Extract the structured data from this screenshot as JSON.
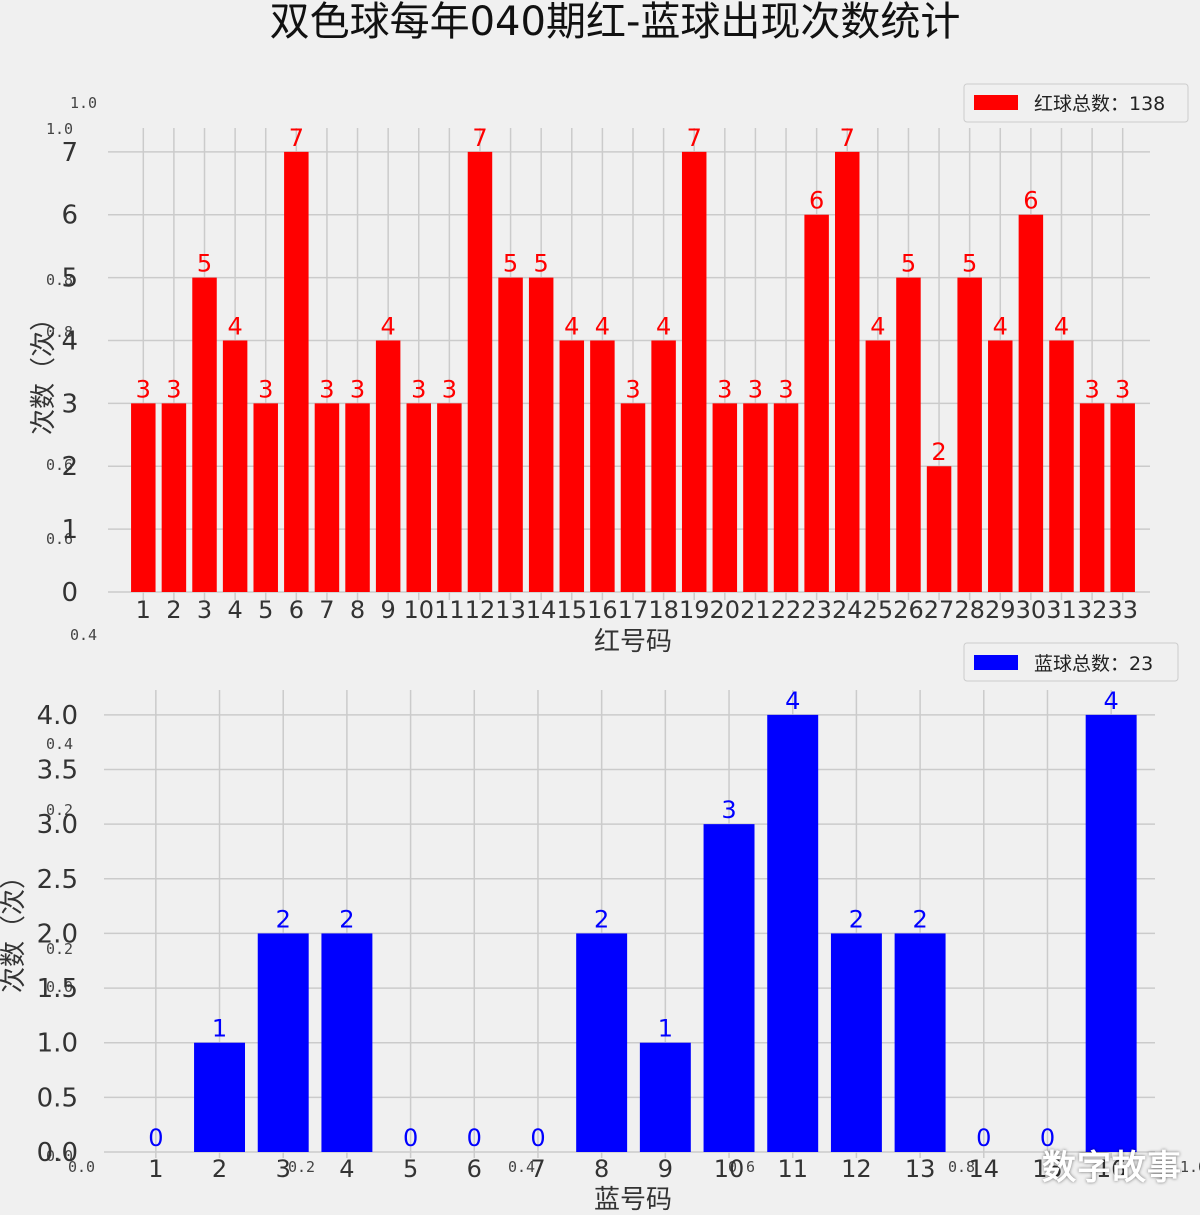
{
  "title": "双色球每年040期红-蓝球出现次数统计",
  "watermark": "数字故事",
  "colors": {
    "background": "#f0f0f0",
    "grid": "#cbcbcb",
    "red": "#ff0000",
    "blue": "#0000ff",
    "text": "#333333"
  },
  "ghost_axis": {
    "left_ticks": [
      "1.0",
      "1.0",
      "0.8",
      "0.8",
      "0.6",
      "0.6",
      "0.4",
      "0.4",
      "0.2",
      "0.2",
      "0.0",
      "0.0"
    ],
    "bottom_ticks": [
      "0.0",
      "0.2",
      "0.4",
      "0.6",
      "0.8",
      "1.0"
    ]
  },
  "chart_data": [
    {
      "type": "bar",
      "title": "",
      "xlabel": "红号码",
      "ylabel": "次数（次）",
      "legend": "红球总数：138",
      "legend_position": "top-right",
      "color": "#ff0000",
      "ylim": [
        0,
        7.3
      ],
      "yticks": [
        "0",
        "1",
        "2",
        "3",
        "4",
        "5",
        "6",
        "7"
      ],
      "grid": true,
      "categories": [
        "1",
        "2",
        "3",
        "4",
        "5",
        "6",
        "7",
        "8",
        "9",
        "10",
        "11",
        "12",
        "13",
        "14",
        "15",
        "16",
        "17",
        "18",
        "19",
        "20",
        "21",
        "22",
        "23",
        "24",
        "25",
        "26",
        "27",
        "28",
        "29",
        "30",
        "31",
        "32",
        "33"
      ],
      "values": [
        3,
        3,
        5,
        4,
        3,
        7,
        3,
        3,
        4,
        3,
        3,
        7,
        5,
        5,
        4,
        4,
        3,
        4,
        7,
        3,
        3,
        3,
        6,
        7,
        4,
        5,
        2,
        5,
        4,
        6,
        4,
        3,
        3
      ]
    },
    {
      "type": "bar",
      "title": "",
      "xlabel": "蓝号码",
      "ylabel": "次数（次）",
      "legend": "蓝球总数：23",
      "legend_position": "top-right",
      "color": "#0000ff",
      "ylim": [
        0,
        4.2
      ],
      "yticks": [
        "0.0",
        "0.5",
        "1.0",
        "1.5",
        "2.0",
        "2.5",
        "3.0",
        "3.5",
        "4.0"
      ],
      "grid": true,
      "categories": [
        "1",
        "2",
        "3",
        "4",
        "5",
        "6",
        "7",
        "8",
        "9",
        "10",
        "11",
        "12",
        "13",
        "14",
        "15",
        "16"
      ],
      "values": [
        0,
        1,
        2,
        2,
        0,
        0,
        0,
        2,
        1,
        3,
        4,
        2,
        2,
        0,
        0,
        4
      ]
    }
  ]
}
